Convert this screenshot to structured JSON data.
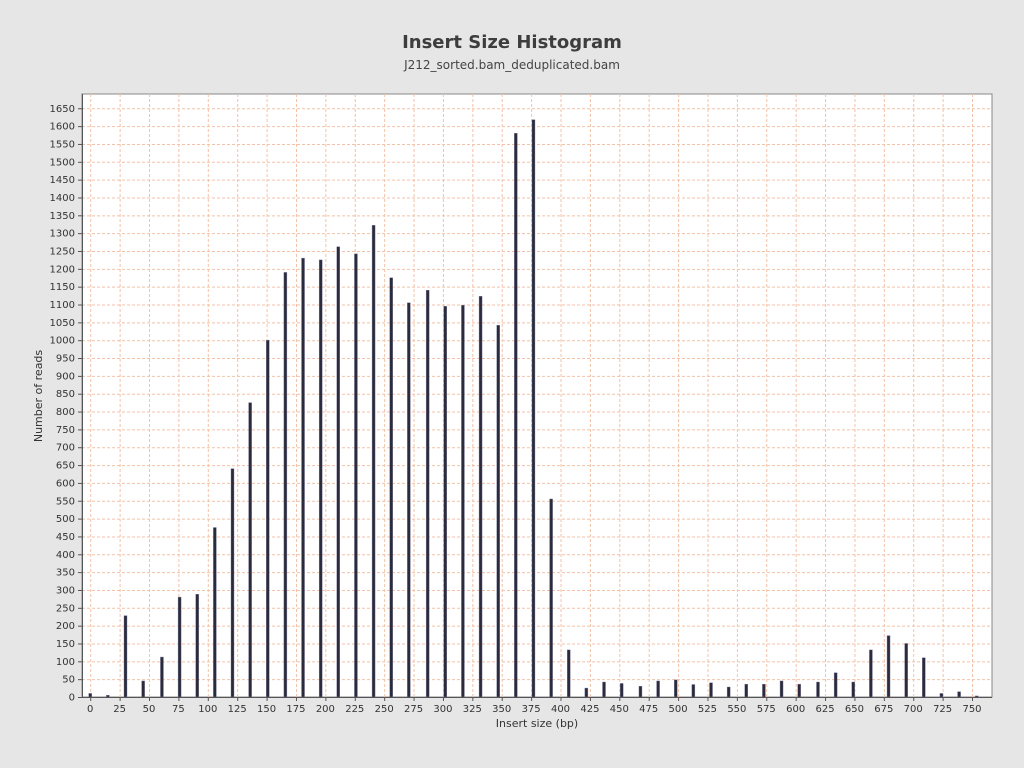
{
  "chart_data": {
    "type": "bar",
    "title": "Insert Size Histogram",
    "subtitle": "J212_sorted.bam_deduplicated.bam",
    "xlabel": "Insert size (bp)",
    "ylabel": "Number of reads",
    "xlim": [
      -7,
      767
    ],
    "ylim": [
      0,
      1690
    ],
    "x_ticks": [
      0,
      25,
      50,
      75,
      100,
      125,
      150,
      175,
      200,
      225,
      250,
      275,
      300,
      325,
      350,
      375,
      400,
      425,
      450,
      475,
      500,
      525,
      550,
      575,
      600,
      625,
      650,
      675,
      700,
      725,
      750
    ],
    "y_ticks": [
      0,
      50,
      100,
      150,
      200,
      250,
      300,
      350,
      400,
      450,
      500,
      550,
      600,
      650,
      700,
      750,
      800,
      850,
      900,
      950,
      1000,
      1050,
      1100,
      1150,
      1200,
      1250,
      1300,
      1350,
      1400,
      1450,
      1500,
      1550,
      1600,
      1650
    ],
    "grid": true,
    "bar_color": "#2b2b3c",
    "grid_color": "#f4c2a8",
    "plot_background": "#ffffff",
    "series": [
      {
        "x": [
          0,
          15,
          30,
          45,
          61,
          76,
          91,
          106,
          121,
          136,
          151,
          166,
          181,
          196,
          211,
          226,
          241,
          256,
          271,
          287,
          302,
          317,
          332,
          347,
          362,
          377,
          392,
          407,
          422,
          437,
          452,
          468,
          483,
          498,
          513,
          528,
          543,
          558,
          573,
          588,
          603,
          619,
          634,
          649,
          664,
          679,
          694,
          709,
          724,
          739,
          754
        ],
        "values": [
          10,
          5,
          228,
          45,
          112,
          280,
          288,
          475,
          640,
          825,
          1000,
          1190,
          1230,
          1225,
          1262,
          1242,
          1322,
          1175,
          1105,
          1140,
          1095,
          1098,
          1123,
          1042,
          1580,
          1618,
          555,
          132,
          25,
          42,
          38,
          30,
          45,
          48,
          35,
          40,
          28,
          36,
          36,
          45,
          36,
          42,
          68,
          42,
          132,
          172,
          150,
          110,
          10,
          15,
          3
        ]
      }
    ]
  }
}
